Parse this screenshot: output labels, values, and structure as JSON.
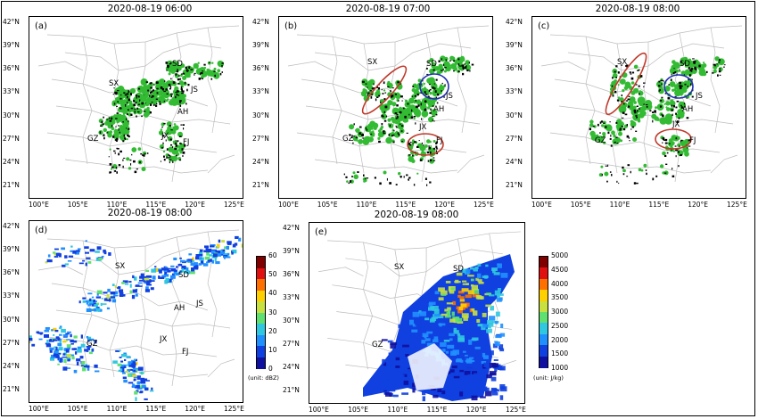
{
  "panels": [
    {
      "id": "a",
      "label": "(a)",
      "title": "2020-08-19 06:00",
      "regions": [
        {
          "name": "SX"
        },
        {
          "name": "SD"
        },
        {
          "name": "JS"
        },
        {
          "name": "AH"
        },
        {
          "name": "GZ"
        },
        {
          "name": "JX"
        },
        {
          "name": "FJ"
        }
      ]
    },
    {
      "id": "b",
      "label": "(b)",
      "title": "2020-08-19 07:00",
      "regions": [
        {
          "name": "SX"
        },
        {
          "name": "SD"
        },
        {
          "name": "JS"
        },
        {
          "name": "AH"
        },
        {
          "name": "GZ"
        },
        {
          "name": "JX"
        },
        {
          "name": "FJ"
        }
      ]
    },
    {
      "id": "c",
      "label": "(c)",
      "title": "2020-08-19 08:00",
      "regions": [
        {
          "name": "SX"
        },
        {
          "name": "SD"
        },
        {
          "name": "JS"
        },
        {
          "name": "AH"
        },
        {
          "name": "GZ"
        },
        {
          "name": "JX"
        },
        {
          "name": "FJ"
        }
      ]
    },
    {
      "id": "d",
      "label": "(d)",
      "title": "2020-08-19 08:00",
      "regions": [
        {
          "name": "SX"
        },
        {
          "name": "SD"
        },
        {
          "name": "AH"
        },
        {
          "name": "JS"
        },
        {
          "name": "GZ"
        },
        {
          "name": "JX"
        },
        {
          "name": "FJ"
        }
      ]
    },
    {
      "id": "e",
      "label": "(e)",
      "title": "2020-08-19 08:00",
      "regions": [
        {
          "name": "SX"
        },
        {
          "name": "SD"
        },
        {
          "name": "GZ"
        }
      ]
    }
  ],
  "axes": {
    "lat_ticks": [
      "42°N",
      "39°N",
      "36°N",
      "33°N",
      "30°N",
      "27°N",
      "24°N",
      "21°N"
    ],
    "lon_ticks": [
      "100°E",
      "105°E",
      "110°E",
      "115°E",
      "120°E",
      "125°E"
    ]
  },
  "colorbar_d": {
    "ticks": [
      "60",
      "50",
      "40",
      "30",
      "20",
      "10",
      "0"
    ],
    "unit": "(unit: dBZ)",
    "colors": [
      "#1010a0",
      "#1040e0",
      "#2090ff",
      "#30c8e0",
      "#60e070",
      "#c8e040",
      "#ffd000",
      "#ff7000",
      "#e01010",
      "#800000"
    ]
  },
  "colorbar_e": {
    "ticks": [
      "5000",
      "4500",
      "4000",
      "3500",
      "3000",
      "2500",
      "2000",
      "1500",
      "1000"
    ],
    "unit": "(unit: J/kg)",
    "colors": [
      "#1010a0",
      "#1040e0",
      "#2090ff",
      "#30c8e0",
      "#60e070",
      "#c8e040",
      "#ffd000",
      "#ff7000",
      "#e01010",
      "#800000"
    ]
  },
  "colors": {
    "green_echo": "#33bb33",
    "black_echo": "#000000",
    "red_circle": "#c0392b",
    "blue_circle": "#2030b0",
    "border": "#bdbdbd"
  }
}
